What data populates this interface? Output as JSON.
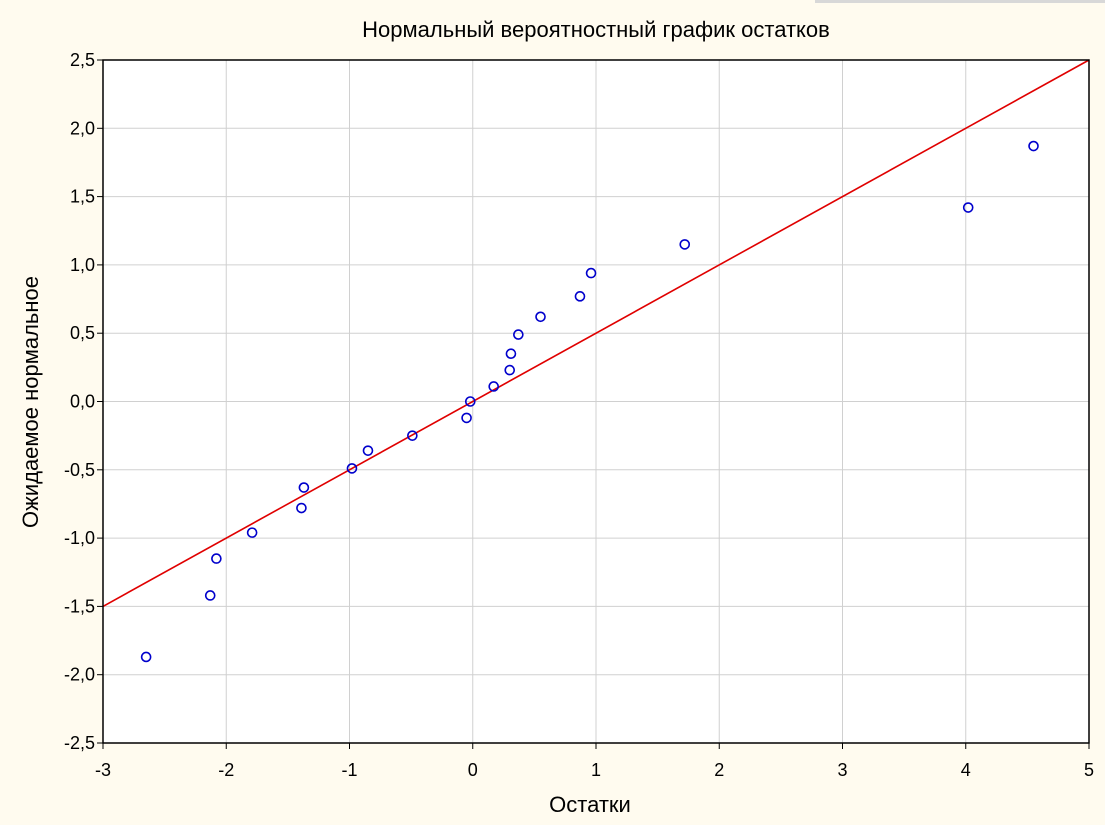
{
  "colors": {
    "background": "#fffbef",
    "plot_background": "#ffffff",
    "grid": "#d0d0d0",
    "fit_line": "#e00000",
    "points": "#0000cc"
  },
  "chart_data": {
    "type": "scatter",
    "title": "Нормальный вероятностный график остатков",
    "xlabel": "Остатки",
    "ylabel": "Ожидаемое нормальное",
    "xlim": [
      -3,
      5
    ],
    "ylim": [
      -2.5,
      2.5
    ],
    "x_ticks": [
      -3,
      -2,
      -1,
      0,
      1,
      2,
      3,
      4,
      5
    ],
    "x_tick_labels": [
      "-3",
      "-2",
      "-1",
      "0",
      "1",
      "2",
      "3",
      "4",
      "5"
    ],
    "y_ticks": [
      2.5,
      2.0,
      1.5,
      1.0,
      0.5,
      0.0,
      -0.5,
      -1.0,
      -1.5,
      -2.0,
      -2.5
    ],
    "y_tick_labels": [
      "2,5",
      "2,0",
      "1,5",
      "1,0",
      "0,5",
      "0,0",
      "-0,5",
      "-1,0",
      "-1,5",
      "-2,0",
      "-2,5"
    ],
    "grid": true,
    "points": [
      {
        "x": -2.65,
        "y": -1.87
      },
      {
        "x": -2.13,
        "y": -1.42
      },
      {
        "x": -2.08,
        "y": -1.15
      },
      {
        "x": -1.79,
        "y": -0.96
      },
      {
        "x": -1.39,
        "y": -0.78
      },
      {
        "x": -1.37,
        "y": -0.63
      },
      {
        "x": -0.98,
        "y": -0.49
      },
      {
        "x": -0.85,
        "y": -0.36
      },
      {
        "x": -0.49,
        "y": -0.25
      },
      {
        "x": -0.05,
        "y": -0.12
      },
      {
        "x": -0.02,
        "y": 0.0
      },
      {
        "x": 0.17,
        "y": 0.11
      },
      {
        "x": 0.3,
        "y": 0.23
      },
      {
        "x": 0.31,
        "y": 0.35
      },
      {
        "x": 0.37,
        "y": 0.49
      },
      {
        "x": 0.55,
        "y": 0.62
      },
      {
        "x": 0.87,
        "y": 0.77
      },
      {
        "x": 0.96,
        "y": 0.94
      },
      {
        "x": 1.72,
        "y": 1.15
      },
      {
        "x": 4.02,
        "y": 1.42
      },
      {
        "x": 4.55,
        "y": 1.87
      }
    ],
    "fit_line": {
      "x": [
        -3,
        5
      ],
      "y": [
        -1.5,
        2.5
      ]
    }
  }
}
